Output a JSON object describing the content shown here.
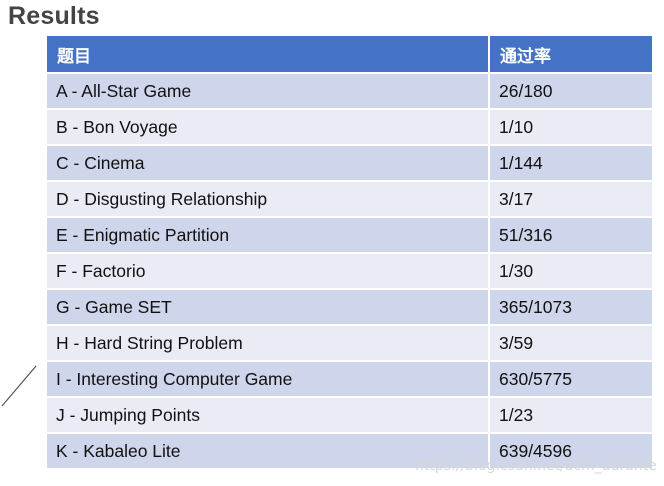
{
  "heading": "Results",
  "table": {
    "headers": [
      "题目",
      "通过率"
    ],
    "rows": [
      [
        "A - All-Star Game",
        "26/180"
      ],
      [
        "B - Bon Voyage",
        "1/10"
      ],
      [
        "C - Cinema",
        "1/144"
      ],
      [
        "D - Disgusting Relationship",
        "3/17"
      ],
      [
        "E - Enigmatic Partition",
        "51/316"
      ],
      [
        "F - Factorio",
        "1/30"
      ],
      [
        "G - Game SET",
        "365/1073"
      ],
      [
        "H - Hard String Problem",
        "3/59"
      ],
      [
        "I - Interesting Computer Game",
        "630/5775"
      ],
      [
        "J - Jumping Points",
        "1/23"
      ],
      [
        "K - Kabaleo Lite",
        "639/4596"
      ]
    ]
  },
  "watermark": "https://blog.csdn.net/acm_durante",
  "colors": {
    "header_bg": "#4472c4",
    "row_dark": "#cfd5ea",
    "row_light": "#e9ebf5"
  }
}
